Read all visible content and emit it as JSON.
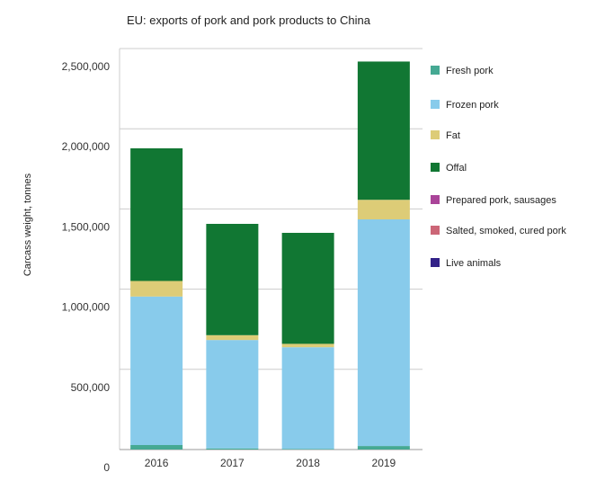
{
  "chart_data": {
    "type": "bar",
    "stacked": true,
    "title": "EU: exports of pork and pork products to China",
    "xlabel": "",
    "ylabel": "Carcass weight, tonnes",
    "ylim": [
      0,
      2500000
    ],
    "yticks": [
      0,
      500000,
      1000000,
      1500000,
      2000000,
      2500000
    ],
    "ytick_labels": [
      "0",
      "500,000",
      "1,000,000",
      "1,500,000",
      "2,000,000",
      "2,500,000"
    ],
    "grid": true,
    "legend_position": "right",
    "categories": [
      "2016",
      "2017",
      "2018",
      "2019"
    ],
    "series": [
      {
        "name": "Fresh pork",
        "color": "#45a993",
        "values": [
          28000,
          7000,
          4000,
          22000
        ]
      },
      {
        "name": "Frozen pork",
        "color": "#88cbeb",
        "values": [
          926000,
          676000,
          634000,
          1413000
        ]
      },
      {
        "name": "Fat",
        "color": "#ddcc77",
        "values": [
          97000,
          30000,
          21000,
          122000
        ]
      },
      {
        "name": "Offal",
        "color": "#117733",
        "values": [
          827000,
          694000,
          692000,
          862000
        ]
      },
      {
        "name": "Prepared pork, sausages",
        "color": "#aa4499",
        "values": [
          0,
          0,
          0,
          0
        ]
      },
      {
        "name": "Salted, smoked, cured pork",
        "color": "#cc6677",
        "values": [
          0,
          0,
          0,
          0
        ]
      },
      {
        "name": "Live animals",
        "color": "#332288",
        "values": [
          0,
          0,
          0,
          0
        ]
      }
    ]
  }
}
